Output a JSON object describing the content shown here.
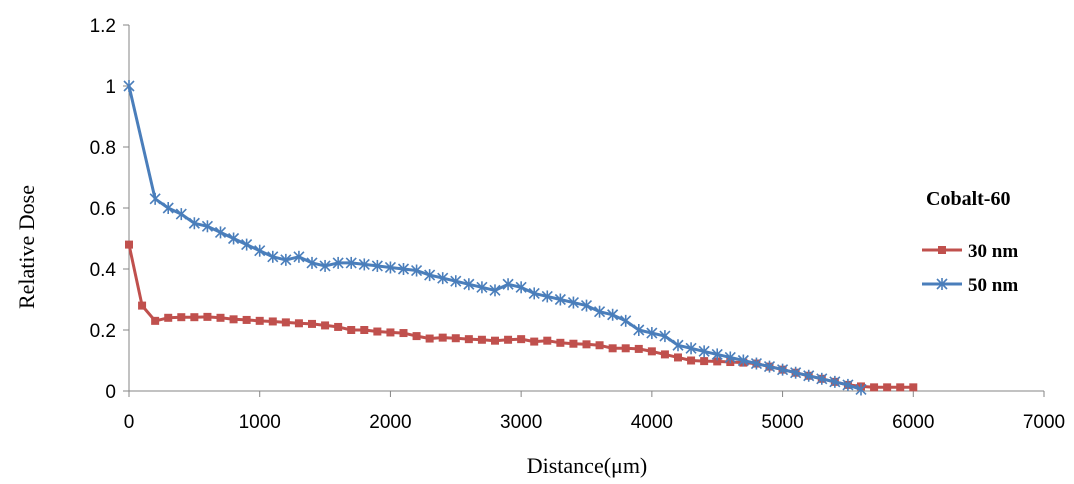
{
  "chart_data": {
    "type": "line",
    "xlabel": "Distance(μm)",
    "ylabel": "Relative Dose",
    "xlim": [
      0,
      7000
    ],
    "ylim": [
      0,
      1.2
    ],
    "x_ticks": [
      "0",
      "1000",
      "2000",
      "3000",
      "4000",
      "5000",
      "6000",
      "7000"
    ],
    "y_ticks": [
      "0",
      "0.2",
      "0.4",
      "0.6",
      "0.8",
      "1",
      "1.2"
    ],
    "grid": false,
    "legend": {
      "title": "Cobalt-60",
      "position": "right"
    },
    "series": [
      {
        "name": "30 nm",
        "color": "#c0504d",
        "marker": "square",
        "x": [
          0,
          100,
          200,
          300,
          400,
          500,
          600,
          700,
          800,
          900,
          1000,
          1100,
          1200,
          1300,
          1400,
          1500,
          1600,
          1700,
          1800,
          1900,
          2000,
          2100,
          2200,
          2300,
          2400,
          2500,
          2600,
          2700,
          2800,
          2900,
          3000,
          3100,
          3200,
          3300,
          3400,
          3500,
          3600,
          3700,
          3800,
          3900,
          4000,
          4100,
          4200,
          4300,
          4400,
          4500,
          4600,
          4700,
          4800,
          4900,
          5000,
          5100,
          5200,
          5300,
          5400,
          5500,
          5600,
          5700,
          5800,
          5900,
          6000
        ],
        "y": [
          0.48,
          0.28,
          0.23,
          0.24,
          0.242,
          0.242,
          0.243,
          0.24,
          0.235,
          0.233,
          0.23,
          0.228,
          0.225,
          0.222,
          0.22,
          0.215,
          0.21,
          0.2,
          0.2,
          0.195,
          0.192,
          0.19,
          0.18,
          0.172,
          0.175,
          0.173,
          0.17,
          0.168,
          0.165,
          0.168,
          0.17,
          0.162,
          0.165,
          0.158,
          0.155,
          0.153,
          0.15,
          0.14,
          0.14,
          0.138,
          0.13,
          0.12,
          0.11,
          0.1,
          0.098,
          0.097,
          0.095,
          0.093,
          0.09,
          0.08,
          0.07,
          0.06,
          0.05,
          0.04,
          0.03,
          0.02,
          0.015,
          0.012,
          0.012,
          0.012,
          0.012
        ]
      },
      {
        "name": "50 nm",
        "color": "#4a7ebb",
        "marker": "star",
        "x": [
          0,
          200,
          300,
          400,
          500,
          600,
          700,
          800,
          900,
          1000,
          1100,
          1200,
          1300,
          1400,
          1500,
          1600,
          1700,
          1800,
          1900,
          2000,
          2100,
          2200,
          2300,
          2400,
          2500,
          2600,
          2700,
          2800,
          2900,
          3000,
          3100,
          3200,
          3300,
          3400,
          3500,
          3600,
          3700,
          3800,
          3900,
          4000,
          4100,
          4200,
          4300,
          4400,
          4500,
          4600,
          4700,
          4800,
          4900,
          5000,
          5100,
          5200,
          5300,
          5400,
          5500,
          5600
        ],
        "y": [
          1.0,
          0.63,
          0.6,
          0.58,
          0.55,
          0.54,
          0.52,
          0.5,
          0.48,
          0.46,
          0.44,
          0.43,
          0.44,
          0.42,
          0.41,
          0.42,
          0.42,
          0.415,
          0.41,
          0.405,
          0.4,
          0.395,
          0.38,
          0.37,
          0.36,
          0.35,
          0.34,
          0.33,
          0.35,
          0.34,
          0.32,
          0.31,
          0.3,
          0.29,
          0.28,
          0.26,
          0.25,
          0.23,
          0.2,
          0.19,
          0.18,
          0.15,
          0.14,
          0.13,
          0.12,
          0.11,
          0.1,
          0.09,
          0.08,
          0.07,
          0.06,
          0.05,
          0.04,
          0.03,
          0.02,
          0.005
        ]
      }
    ]
  }
}
